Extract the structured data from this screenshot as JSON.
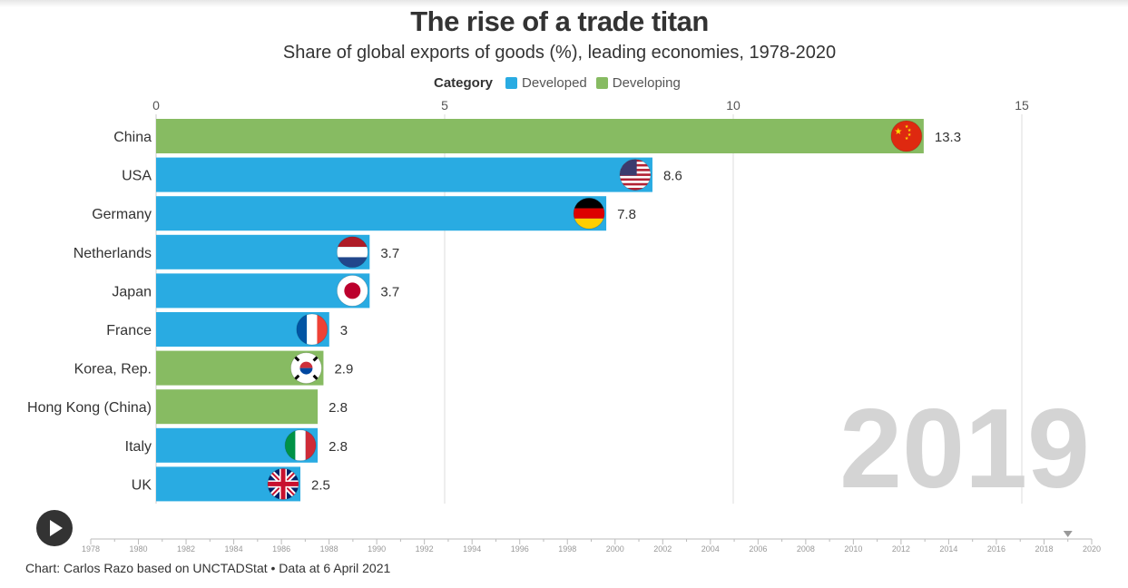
{
  "title": "The rise of a trade titan",
  "subtitle": "Share of global exports of goods (%), leading economies, 1978-2020",
  "legend": {
    "title": "Category",
    "items": [
      {
        "label": "Developed",
        "color": "#29abe2"
      },
      {
        "label": "Developing",
        "color": "#87bb62"
      }
    ]
  },
  "current_year": "2019",
  "timeline": {
    "labels": [
      "1978",
      "1980",
      "1982",
      "1984",
      "1986",
      "1988",
      "1990",
      "1992",
      "1994",
      "1996",
      "1998",
      "2000",
      "2002",
      "2004",
      "2006",
      "2008",
      "2010",
      "2012",
      "2014",
      "2016",
      "2018",
      "2020"
    ],
    "start": 1978,
    "end": 2020,
    "current": 2019
  },
  "source": "Chart: Carlos Razo based on UNCTADStat • Data at 6 April 2021",
  "chart_data": {
    "type": "bar",
    "orientation": "horizontal",
    "xlim": [
      0,
      15
    ],
    "x_ticks": [
      "0",
      "5",
      "10",
      "15"
    ],
    "grid": true,
    "categories": [
      "China",
      "USA",
      "Germany",
      "Netherlands",
      "Japan",
      "France",
      "Korea, Rep.",
      "Hong Kong (China)",
      "Italy",
      "UK"
    ],
    "values": [
      13.3,
      8.6,
      7.8,
      3.7,
      3.7,
      3,
      2.9,
      2.8,
      2.8,
      2.5
    ],
    "value_labels": [
      "13.3",
      "8.6",
      "7.8",
      "3.7",
      "3.7",
      "3",
      "2.9",
      "2.8",
      "2.8",
      "2.5"
    ],
    "category_group": [
      "Developing",
      "Developed",
      "Developed",
      "Developed",
      "Developed",
      "Developed",
      "Developing",
      "Developing",
      "Developed",
      "Developed"
    ],
    "flags": [
      "china-flag-icon",
      "usa-flag-icon",
      "germany-flag-icon",
      "netherlands-flag-icon",
      "japan-flag-icon",
      "france-flag-icon",
      "korea-flag-icon",
      "",
      "italy-flag-icon",
      "uk-flag-icon"
    ],
    "colors": {
      "Developed": "#29abe2",
      "Developing": "#87bb62"
    }
  }
}
